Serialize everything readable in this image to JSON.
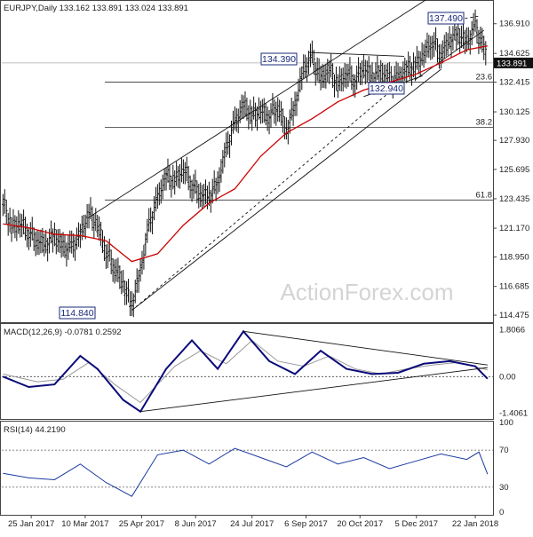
{
  "chart_data": [
    {
      "type": "candlestick",
      "header": "EURJPY,Daily  133.162 133.891 133.024 133.891",
      "symbol": "EURJPY",
      "timeframe": "Daily",
      "ohlc": {
        "open": 133.162,
        "high": 133.891,
        "low": 133.024,
        "close": 133.891
      },
      "ylim": [
        114.0,
        138.6
      ],
      "y_ticks": [
        "136.910",
        "134.625",
        "132.415",
        "130.125",
        "127.930",
        "125.695",
        "123.435",
        "121.170",
        "118.950",
        "116.685",
        "114.475"
      ],
      "x_ticks": [
        "25 Jan 2017",
        "10 Mar 2017",
        "25 Apr 2017",
        "8 Jun 2017",
        "24 Jul 2017",
        "6 Sep 2017",
        "20 Oct 2017",
        "5 Dec 2017",
        "22 Jan 2018"
      ],
      "last_price_label": "133.891",
      "annotations": [
        {
          "text": "137.490",
          "value": 137.49,
          "date": "2018-01-25"
        },
        {
          "text": "134.390",
          "value": 134.39,
          "date": "2017-09-08"
        },
        {
          "text": "132.940",
          "value": 132.94,
          "date": "2017-11-15"
        },
        {
          "text": "114.840",
          "value": 114.84,
          "date": "2017-04-17"
        }
      ],
      "fibonacci": [
        {
          "label": "23.6",
          "value": 132.42
        },
        {
          "label": "38.2",
          "value": 128.93
        },
        {
          "label": "61.8",
          "value": 123.34
        }
      ],
      "watermark": "ActionForex.com",
      "series": [
        {
          "type": "ohlc_close_path",
          "color": "#111111",
          "points": [
            [
              "2017-01-02",
              123.2
            ],
            [
              "2017-01-09",
              121.2
            ],
            [
              "2017-01-16",
              121.6
            ],
            [
              "2017-01-23",
              120.9
            ],
            [
              "2017-01-30",
              120.2
            ],
            [
              "2017-02-06",
              119.9
            ],
            [
              "2017-02-13",
              120.6
            ],
            [
              "2017-02-20",
              119.6
            ],
            [
              "2017-02-27",
              119.6
            ],
            [
              "2017-03-06",
              120.6
            ],
            [
              "2017-03-13",
              122.3
            ],
            [
              "2017-03-20",
              121.4
            ],
            [
              "2017-03-27",
              119.4
            ],
            [
              "2017-04-03",
              118.2
            ],
            [
              "2017-04-10",
              116.9
            ],
            [
              "2017-04-17",
              115.2
            ],
            [
              "2017-04-24",
              117.8
            ],
            [
              "2017-05-01",
              121.3
            ],
            [
              "2017-05-08",
              123.4
            ],
            [
              "2017-05-15",
              125.2
            ],
            [
              "2017-05-22",
              124.8
            ],
            [
              "2017-05-29",
              125.8
            ],
            [
              "2017-06-05",
              124.6
            ],
            [
              "2017-06-12",
              123.8
            ],
            [
              "2017-06-19",
              123.6
            ],
            [
              "2017-06-26",
              124.6
            ],
            [
              "2017-07-03",
              127.2
            ],
            [
              "2017-07-10",
              129.2
            ],
            [
              "2017-07-17",
              130.6
            ],
            [
              "2017-07-24",
              129.8
            ],
            [
              "2017-07-31",
              130.2
            ],
            [
              "2017-08-07",
              129.8
            ],
            [
              "2017-08-14",
              130.6
            ],
            [
              "2017-08-21",
              128.6
            ],
            [
              "2017-08-28",
              130.6
            ],
            [
              "2017-09-04",
              133.4
            ],
            [
              "2017-09-11",
              134.2
            ],
            [
              "2017-09-18",
              132.6
            ],
            [
              "2017-09-25",
              133.4
            ],
            [
              "2017-10-02",
              132.2
            ],
            [
              "2017-10-09",
              133.2
            ],
            [
              "2017-10-16",
              132.6
            ],
            [
              "2017-10-23",
              133.6
            ],
            [
              "2017-10-30",
              132.8
            ],
            [
              "2017-11-06",
              133.2
            ],
            [
              "2017-11-13",
              132.6
            ],
            [
              "2017-11-20",
              132.6
            ],
            [
              "2017-11-27",
              133.4
            ],
            [
              "2017-12-04",
              133.6
            ],
            [
              "2017-12-11",
              134.6
            ],
            [
              "2017-12-18",
              135.6
            ],
            [
              "2017-12-25",
              134.6
            ],
            [
              "2018-01-01",
              135.6
            ],
            [
              "2018-01-08",
              136.1
            ],
            [
              "2018-01-15",
              135.4
            ],
            [
              "2018-01-22",
              136.6
            ],
            [
              "2018-01-29",
              135.0
            ],
            [
              "2018-02-01",
              133.9
            ]
          ]
        },
        {
          "type": "moving_average",
          "color": "#cc0000",
          "points": [
            [
              "2017-01-02",
              121.5
            ],
            [
              "2017-01-23",
              121.2
            ],
            [
              "2017-02-13",
              120.7
            ],
            [
              "2017-03-06",
              120.6
            ],
            [
              "2017-03-27",
              120.2
            ],
            [
              "2017-04-17",
              118.6
            ],
            [
              "2017-05-08",
              119.2
            ],
            [
              "2017-05-29",
              121.4
            ],
            [
              "2017-06-19",
              123.1
            ],
            [
              "2017-07-10",
              124.2
            ],
            [
              "2017-07-31",
              126.7
            ],
            [
              "2017-08-21",
              128.5
            ],
            [
              "2017-09-11",
              129.6
            ],
            [
              "2017-10-02",
              130.9
            ],
            [
              "2017-10-23",
              131.8
            ],
            [
              "2017-11-13",
              132.4
            ],
            [
              "2017-12-04",
              133.0
            ],
            [
              "2017-12-25",
              133.9
            ],
            [
              "2018-01-15",
              134.9
            ],
            [
              "2018-02-01",
              135.2
            ]
          ]
        }
      ]
    },
    {
      "type": "line",
      "header": "MACD(12,26,9) -0.0781 0.2592",
      "ylim": [
        -1.6,
        2.0
      ],
      "y_ticks": [
        "1.8066",
        "0.00",
        "-1.4061"
      ],
      "series": [
        {
          "name": "MACD",
          "color": "#0a0a7a",
          "points": [
            [
              "2017-01-02",
              0.0
            ],
            [
              "2017-01-23",
              -0.4
            ],
            [
              "2017-02-13",
              -0.3
            ],
            [
              "2017-03-06",
              0.8
            ],
            [
              "2017-03-20",
              0.3
            ],
            [
              "2017-04-10",
              -0.9
            ],
            [
              "2017-04-24",
              -1.35
            ],
            [
              "2017-05-15",
              0.3
            ],
            [
              "2017-06-05",
              1.4
            ],
            [
              "2017-06-26",
              0.3
            ],
            [
              "2017-07-17",
              1.75
            ],
            [
              "2017-08-07",
              0.6
            ],
            [
              "2017-08-28",
              0.1
            ],
            [
              "2017-09-18",
              1.0
            ],
            [
              "2017-10-09",
              0.3
            ],
            [
              "2017-10-30",
              0.1
            ],
            [
              "2017-11-20",
              0.15
            ],
            [
              "2017-12-11",
              0.5
            ],
            [
              "2018-01-01",
              0.6
            ],
            [
              "2018-01-22",
              0.4
            ],
            [
              "2018-02-01",
              -0.08
            ]
          ]
        },
        {
          "name": "Signal",
          "color": "#999999",
          "points": [
            [
              "2017-01-02",
              0.1
            ],
            [
              "2017-01-30",
              -0.2
            ],
            [
              "2017-02-20",
              -0.1
            ],
            [
              "2017-03-13",
              0.55
            ],
            [
              "2017-04-03",
              -0.3
            ],
            [
              "2017-04-24",
              -1.0
            ],
            [
              "2017-05-22",
              0.4
            ],
            [
              "2017-06-12",
              1.0
            ],
            [
              "2017-07-03",
              0.5
            ],
            [
              "2017-07-24",
              1.4
            ],
            [
              "2017-08-14",
              0.6
            ],
            [
              "2017-09-04",
              0.4
            ],
            [
              "2017-09-25",
              0.8
            ],
            [
              "2017-10-16",
              0.3
            ],
            [
              "2017-11-06",
              0.1
            ],
            [
              "2017-11-27",
              0.3
            ],
            [
              "2017-12-18",
              0.45
            ],
            [
              "2018-01-08",
              0.55
            ],
            [
              "2018-02-01",
              0.26
            ]
          ]
        }
      ]
    },
    {
      "type": "line",
      "header": "RSI(14) 44.2190",
      "ylim": [
        0,
        100
      ],
      "y_ticks": [
        "100",
        "70",
        "30",
        "0"
      ],
      "series": [
        {
          "name": "RSI",
          "color": "#1a3aa0",
          "points": [
            [
              "2017-01-02",
              45
            ],
            [
              "2017-01-23",
              40
            ],
            [
              "2017-02-13",
              38
            ],
            [
              "2017-03-06",
              55
            ],
            [
              "2017-03-27",
              35
            ],
            [
              "2017-04-17",
              20
            ],
            [
              "2017-05-08",
              65
            ],
            [
              "2017-05-29",
              70
            ],
            [
              "2017-06-19",
              55
            ],
            [
              "2017-07-10",
              72
            ],
            [
              "2017-07-31",
              62
            ],
            [
              "2017-08-21",
              52
            ],
            [
              "2017-09-11",
              68
            ],
            [
              "2017-10-02",
              55
            ],
            [
              "2017-10-23",
              62
            ],
            [
              "2017-11-13",
              50
            ],
            [
              "2017-12-04",
              58
            ],
            [
              "2017-12-25",
              66
            ],
            [
              "2018-01-15",
              60
            ],
            [
              "2018-01-25",
              68
            ],
            [
              "2018-02-01",
              44
            ]
          ]
        }
      ]
    }
  ]
}
